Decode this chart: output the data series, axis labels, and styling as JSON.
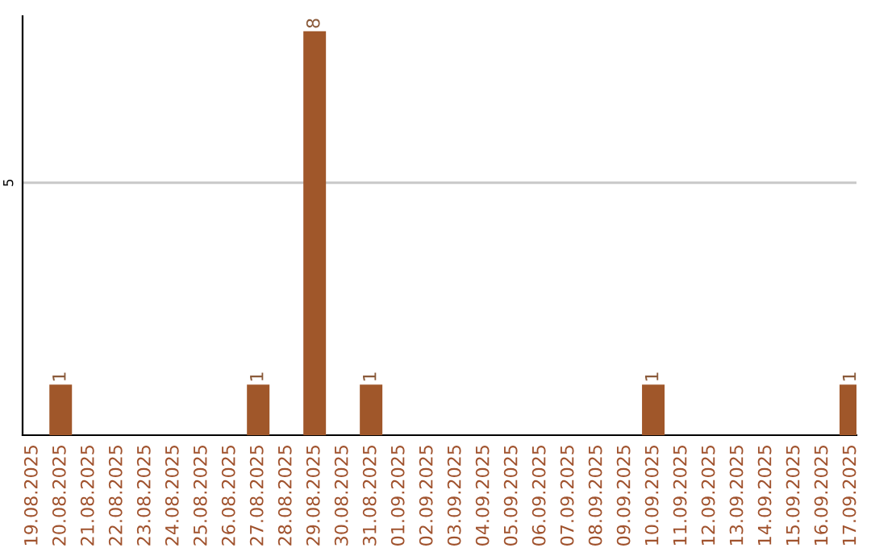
{
  "chart_data": {
    "type": "bar",
    "categories": [
      "19.08.2025",
      "20.08.2025",
      "21.08.2025",
      "22.08.2025",
      "23.08.2025",
      "24.08.2025",
      "25.08.2025",
      "26.08.2025",
      "27.08.2025",
      "28.08.2025",
      "29.08.2025",
      "30.08.2025",
      "31.08.2025",
      "01.09.2025",
      "02.09.2025",
      "03.09.2025",
      "04.09.2025",
      "05.09.2025",
      "06.09.2025",
      "07.09.2025",
      "08.09.2025",
      "09.09.2025",
      "10.09.2025",
      "11.09.2025",
      "12.09.2025",
      "13.09.2025",
      "14.09.2025",
      "15.09.2025",
      "16.09.2025",
      "17.09.2025"
    ],
    "values": [
      0,
      1,
      0,
      0,
      0,
      0,
      0,
      0,
      1,
      0,
      8,
      0,
      1,
      0,
      0,
      0,
      0,
      0,
      0,
      0,
      0,
      0,
      1,
      0,
      0,
      0,
      0,
      0,
      0,
      1
    ],
    "value_labels": [
      null,
      "1",
      null,
      null,
      null,
      null,
      null,
      null,
      "1",
      null,
      "8",
      null,
      "1",
      null,
      null,
      null,
      null,
      null,
      null,
      null,
      null,
      null,
      "1",
      null,
      null,
      null,
      null,
      null,
      null,
      "1"
    ],
    "color": "#a0572a",
    "ylim": [
      0,
      8.3
    ],
    "yticks": [
      5
    ],
    "grid": "y",
    "legend": false
  }
}
